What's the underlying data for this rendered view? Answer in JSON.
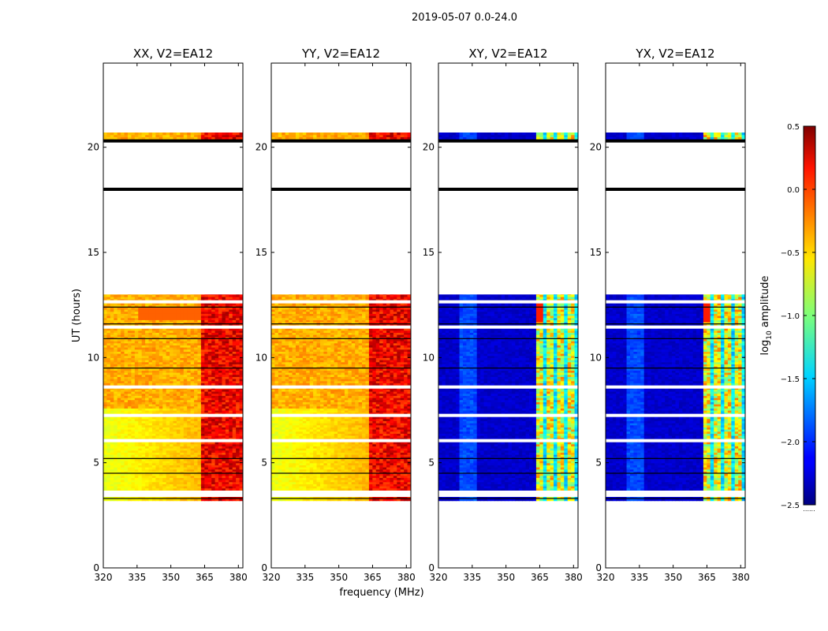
{
  "chart_data": {
    "type": "heatmap",
    "title": "2019-05-07 0.0-24.0",
    "xlabel": "frequency (MHz)",
    "ylabel": "UT (hours)",
    "xlim": [
      320,
      382
    ],
    "ylim": [
      0,
      24
    ],
    "xticks": [
      "320",
      "335",
      "350",
      "365",
      "380"
    ],
    "yticks": [
      "0",
      "5",
      "10",
      "15",
      "20"
    ],
    "panels": [
      {
        "title": "XX, V2=EA12",
        "polarization": "XX",
        "kind": "parallel"
      },
      {
        "title": "YY, V2=EA12",
        "polarization": "YY",
        "kind": "parallel"
      },
      {
        "title": "XY, V2=EA12",
        "polarization": "XY",
        "kind": "cross"
      },
      {
        "title": "YX, V2=EA12",
        "polarization": "YX",
        "kind": "cross"
      }
    ],
    "data_time_range": [
      3.2,
      20.7
    ],
    "blank_time_range": [
      13.0,
      20.3
    ],
    "black_flag_lines": [
      3.3,
      4.5,
      5.2,
      9.5,
      10.9,
      11.6,
      12.4,
      18.0,
      20.3
    ],
    "white_gap_lines": [
      3.45,
      3.6,
      6.05,
      7.25,
      8.6,
      11.45,
      12.65
    ],
    "high_band_start_mhz": 362,
    "colorbar": {
      "label_prefix": "log",
      "label_sub": "10",
      "label_suffix": " amplitude",
      "min": -2.5,
      "max": 0.5,
      "ticks": [
        "−2.5",
        "−2.0",
        "−1.5",
        "−1.0",
        "−0.5",
        "0.0",
        "0.5"
      ],
      "colormap": "jet"
    },
    "colorbar_footer": "......"
  }
}
